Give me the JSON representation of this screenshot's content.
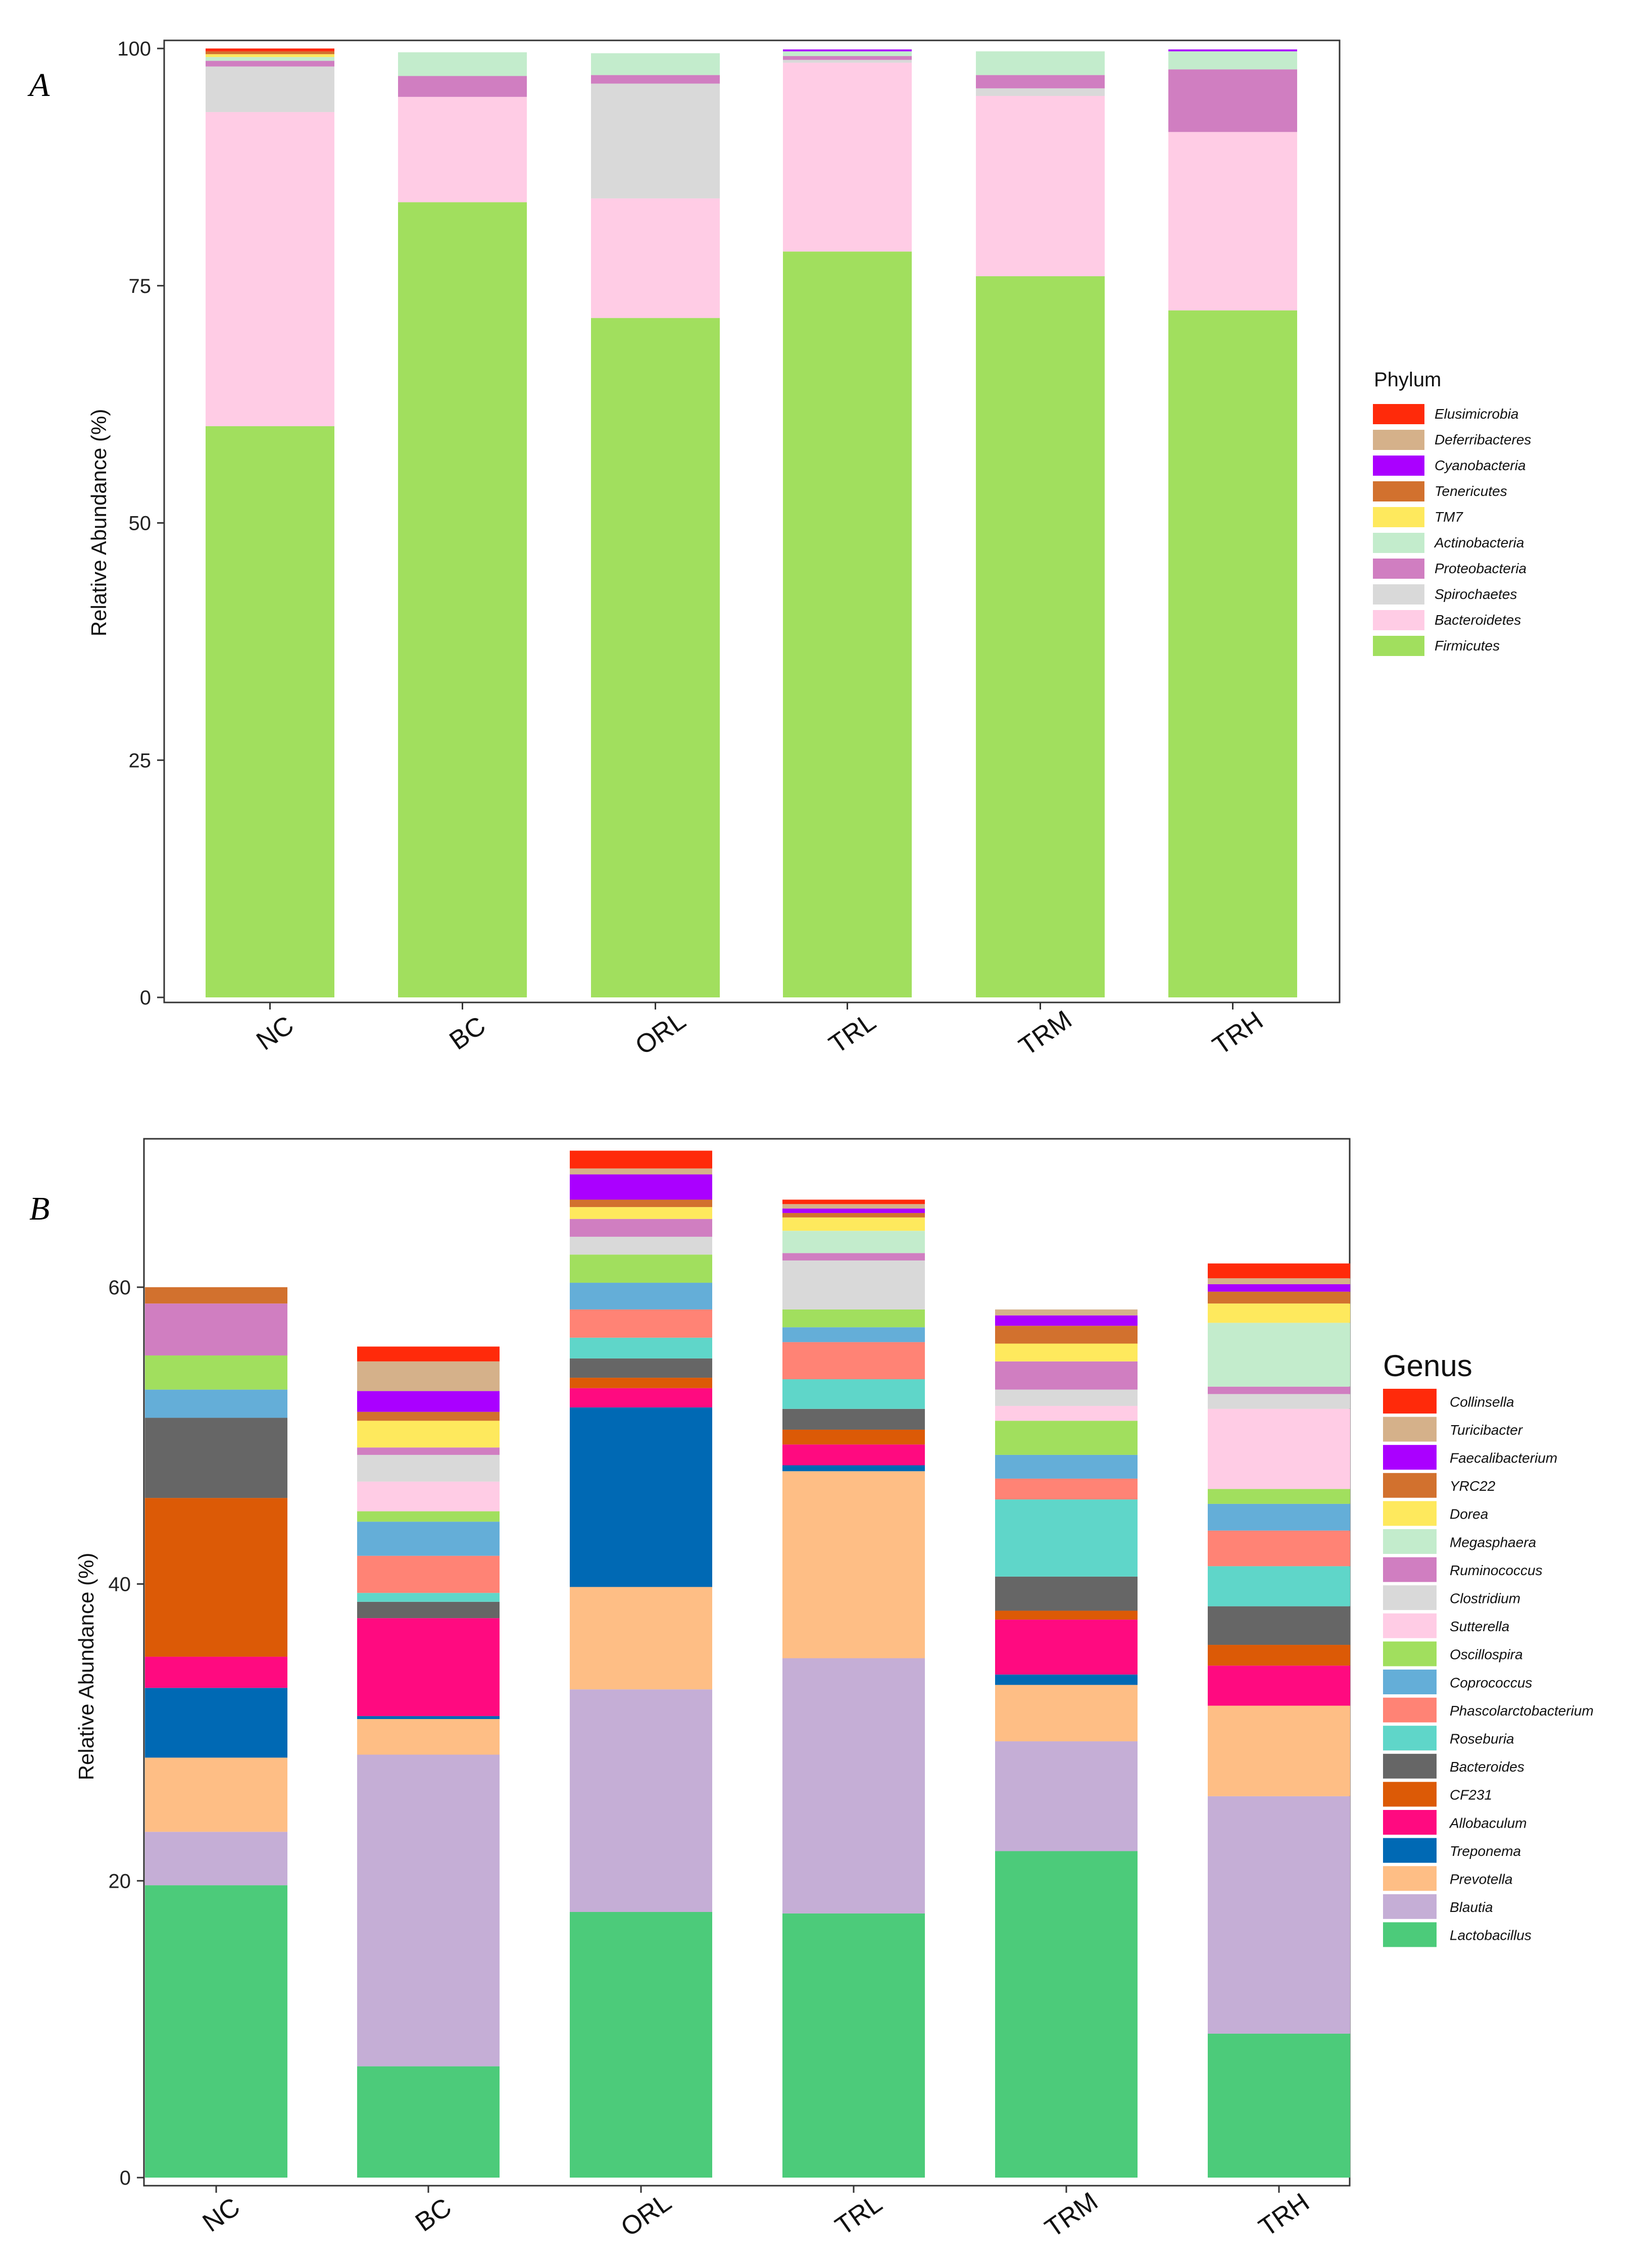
{
  "chart_data": [
    {
      "panel": "A",
      "type": "bar",
      "stacked": true,
      "title": "",
      "xlabel": "",
      "ylabel": "Relative Abundance (%)",
      "ylim": [
        0,
        100
      ],
      "yticks": [
        0,
        25,
        50,
        75,
        100
      ],
      "grid": false,
      "legend_position": "right",
      "legend_title": "Phylum",
      "categories": [
        "NC",
        "BC",
        "ORL",
        "TRL",
        "TRM",
        "TRH"
      ],
      "series": [
        {
          "name": "Firmicutes",
          "color": "#A1DF5E",
          "values": [
            60.2,
            83.8,
            71.6,
            78.6,
            76.0,
            72.4
          ]
        },
        {
          "name": "Bacteroidetes",
          "color": "#FFCCE5",
          "values": [
            33.1,
            11.1,
            12.6,
            19.9,
            19.0,
            18.8
          ]
        },
        {
          "name": "Spirochaetes",
          "color": "#D9D9D9",
          "values": [
            4.8,
            0.0,
            12.1,
            0.3,
            0.8,
            0.0
          ]
        },
        {
          "name": "Proteobacteria",
          "color": "#D07EC1",
          "values": [
            0.6,
            2.2,
            0.9,
            0.4,
            1.4,
            6.6
          ]
        },
        {
          "name": "Actinobacteria",
          "color": "#C3ECCC",
          "values": [
            0.4,
            2.5,
            2.3,
            0.5,
            2.5,
            1.9
          ]
        },
        {
          "name": "TM7",
          "color": "#FEE95D",
          "values": [
            0.3,
            0.0,
            0.0,
            0.0,
            0.0,
            0.0
          ]
        },
        {
          "name": "Tenericutes",
          "color": "#D2712E",
          "values": [
            0.3,
            0.0,
            0.0,
            0.0,
            0.0,
            0.0
          ]
        },
        {
          "name": "Cyanobacteria",
          "color": "#AA00FF",
          "values": [
            0.0,
            0.0,
            0.0,
            0.2,
            0.0,
            0.2
          ]
        },
        {
          "name": "Deferribacteres",
          "color": "#D5B18A",
          "values": [
            0.0,
            0.0,
            0.0,
            0.0,
            0.0,
            0.0
          ]
        },
        {
          "name": "Elusimicrobia",
          "color": "#FF2A0A",
          "values": [
            0.3,
            0.0,
            0.0,
            0.0,
            0.0,
            0.0
          ]
        }
      ]
    },
    {
      "panel": "B",
      "type": "bar",
      "stacked": true,
      "title": "",
      "xlabel": "",
      "ylabel": "Relative Abundance (%)",
      "ylim": [
        0,
        70
      ],
      "yticks": [
        0,
        20,
        40,
        60
      ],
      "grid": false,
      "legend_position": "right",
      "legend_title": "Genus",
      "categories": [
        "NC",
        "BC",
        "ORL",
        "TRL",
        "TRM",
        "TRH"
      ],
      "series": [
        {
          "name": "Lactobacillus",
          "color": "#4CCB7A",
          "values": [
            19.7,
            7.5,
            17.9,
            17.8,
            22.0,
            9.7
          ]
        },
        {
          "name": "Blautia",
          "color": "#C5AED6",
          "values": [
            3.6,
            21.0,
            15.0,
            17.2,
            7.4,
            16.0
          ]
        },
        {
          "name": "Prevotella",
          "color": "#FEBE85",
          "values": [
            5.0,
            2.4,
            6.9,
            12.6,
            3.8,
            6.1
          ]
        },
        {
          "name": "Treponema",
          "color": "#0069B4",
          "values": [
            4.7,
            0.2,
            12.1,
            0.4,
            0.7,
            0.0
          ]
        },
        {
          "name": "Allobaculum",
          "color": "#FF0A80",
          "values": [
            2.1,
            6.6,
            1.3,
            1.4,
            3.7,
            2.7
          ]
        },
        {
          "name": "CF231",
          "color": "#DC5A06",
          "values": [
            10.7,
            0.0,
            0.7,
            1.0,
            0.6,
            1.4
          ]
        },
        {
          "name": "Bacteroides",
          "color": "#666666",
          "values": [
            5.4,
            1.1,
            1.3,
            1.4,
            2.3,
            2.6
          ]
        },
        {
          "name": "Roseburia",
          "color": "#5FD6C9",
          "values": [
            0.0,
            0.6,
            1.4,
            2.0,
            5.2,
            2.7
          ]
        },
        {
          "name": "Phascolarctobacterium",
          "color": "#FF8375",
          "values": [
            0.0,
            2.5,
            1.9,
            2.5,
            1.4,
            2.4
          ]
        },
        {
          "name": "Coprococcus",
          "color": "#64AED8",
          "values": [
            1.9,
            2.3,
            1.8,
            1.0,
            1.6,
            1.8
          ]
        },
        {
          "name": "Oscillospira",
          "color": "#A1DF5E",
          "values": [
            2.3,
            0.7,
            1.9,
            1.2,
            2.3,
            1.0
          ]
        },
        {
          "name": "Sutterella",
          "color": "#FFCCE5",
          "values": [
            0.0,
            2.0,
            0.0,
            0.0,
            1.0,
            5.4
          ]
        },
        {
          "name": "Clostridium",
          "color": "#D9D9D9",
          "values": [
            0.0,
            1.8,
            1.2,
            3.3,
            1.1,
            1.0
          ]
        },
        {
          "name": "Ruminococcus",
          "color": "#D07EC1",
          "values": [
            3.5,
            0.5,
            1.2,
            0.5,
            1.9,
            0.5
          ]
        },
        {
          "name": "Megasphaera",
          "color": "#C3ECCC",
          "values": [
            0.0,
            0.0,
            0.0,
            1.5,
            0.0,
            4.3
          ]
        },
        {
          "name": "Dorea",
          "color": "#FEE95D",
          "values": [
            0.0,
            1.8,
            0.8,
            0.9,
            1.2,
            1.3
          ]
        },
        {
          "name": "YRC22",
          "color": "#D2712E",
          "values": [
            1.1,
            0.6,
            0.5,
            0.3,
            1.2,
            0.8
          ]
        },
        {
          "name": "Faecalibacterium",
          "color": "#AA00FF",
          "values": [
            0.0,
            1.4,
            1.7,
            0.3,
            0.7,
            0.5
          ]
        },
        {
          "name": "Turicibacter",
          "color": "#D5B18A",
          "values": [
            0.0,
            2.0,
            0.4,
            0.3,
            0.4,
            0.4
          ]
        },
        {
          "name": "Collinsella",
          "color": "#FF2A0A",
          "values": [
            0.0,
            1.0,
            1.2,
            0.3,
            0.0,
            1.0
          ]
        }
      ]
    }
  ]
}
